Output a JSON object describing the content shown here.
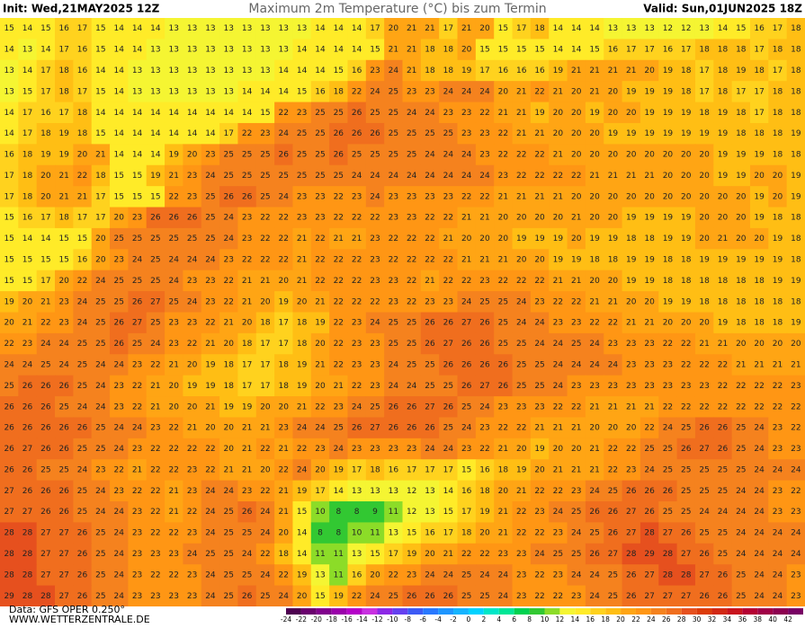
{
  "header": {
    "init": "Init: Wed,21MAY2025 12Z",
    "title": "Maximum 2m Temperature (°C) bis zum Termin",
    "valid": "Valid: Sun,01JUN2025 18Z"
  },
  "footer": {
    "source": "Data: GFS OPER 0.250°",
    "site": "WWW.WETTERZENTRALE.DE"
  },
  "colorbar": {
    "ticks": [
      -24,
      -22,
      -20,
      -18,
      -16,
      -14,
      -12,
      -10,
      -8,
      -6,
      -4,
      -2,
      0,
      2,
      4,
      6,
      8,
      10,
      12,
      14,
      16,
      18,
      20,
      22,
      24,
      26,
      28,
      30,
      32,
      34,
      36,
      38,
      40,
      42
    ],
    "colors": [
      "#4d0050",
      "#6a006e",
      "#80008c",
      "#9a00aa",
      "#b400c8",
      "#c830e0",
      "#8c28e6",
      "#6440f0",
      "#3c5af5",
      "#2878ff",
      "#1e96ff",
      "#14b4ff",
      "#00d2ff",
      "#00e6c8",
      "#00e696",
      "#00d250",
      "#32c832",
      "#8cdc28",
      "#f5f532",
      "#ffeb28",
      "#ffd21e",
      "#ffbe14",
      "#ffa514",
      "#ff9614",
      "#f5821e",
      "#f06e1e",
      "#e6501e",
      "#dc3c0a",
      "#d22814",
      "#c8141e",
      "#b40032",
      "#a00046",
      "#8c0050",
      "#780064"
    ]
  },
  "map": {
    "rows": [
      [
        15,
        14,
        15,
        16,
        17,
        15,
        14,
        14,
        14,
        13,
        13,
        13,
        13,
        13,
        13,
        13,
        13,
        14,
        14,
        14,
        17,
        20,
        21,
        21,
        17,
        21,
        20,
        15,
        17,
        18,
        14,
        14,
        14,
        13,
        13,
        13,
        12,
        12,
        13,
        14,
        15,
        16,
        17,
        18
      ],
      [
        14,
        13,
        14,
        17,
        16,
        15,
        14,
        14,
        13,
        13,
        13,
        13,
        13,
        13,
        13,
        13,
        14,
        14,
        14,
        14,
        15,
        21,
        21,
        18,
        18,
        20,
        15,
        15,
        15,
        15,
        14,
        14,
        15,
        16,
        17,
        17,
        16,
        17,
        18,
        18,
        18,
        17,
        18,
        18
      ],
      [
        13,
        14,
        17,
        18,
        16,
        14,
        14,
        13,
        13,
        13,
        13,
        13,
        13,
        13,
        13,
        14,
        14,
        14,
        15,
        16,
        23,
        24,
        21,
        18,
        18,
        19,
        17,
        16,
        16,
        16,
        19,
        21,
        21,
        21,
        21,
        20,
        19,
        18,
        17,
        18,
        19,
        18,
        17,
        18
      ],
      [
        13,
        15,
        17,
        18,
        17,
        15,
        14,
        13,
        13,
        13,
        13,
        13,
        13,
        14,
        14,
        14,
        15,
        16,
        18,
        22,
        24,
        25,
        23,
        23,
        24,
        24,
        24,
        20,
        21,
        22,
        21,
        20,
        21,
        20,
        19,
        19,
        19,
        18,
        17,
        18,
        17,
        17,
        18,
        18
      ],
      [
        14,
        17,
        16,
        17,
        18,
        14,
        14,
        14,
        14,
        14,
        14,
        14,
        14,
        14,
        15,
        22,
        23,
        25,
        25,
        26,
        25,
        25,
        24,
        24,
        23,
        23,
        22,
        21,
        21,
        19,
        20,
        20,
        19,
        20,
        20,
        19,
        19,
        19,
        18,
        19,
        18,
        17,
        18,
        18
      ],
      [
        14,
        17,
        18,
        19,
        18,
        15,
        14,
        14,
        14,
        14,
        14,
        14,
        17,
        22,
        23,
        24,
        25,
        25,
        26,
        26,
        26,
        25,
        25,
        25,
        25,
        23,
        23,
        22,
        21,
        21,
        20,
        20,
        20,
        19,
        19,
        19,
        19,
        19,
        19,
        19,
        18,
        18,
        18,
        19
      ],
      [
        16,
        18,
        19,
        19,
        20,
        21,
        14,
        14,
        14,
        19,
        20,
        23,
        25,
        25,
        25,
        26,
        25,
        25,
        26,
        25,
        25,
        25,
        25,
        24,
        24,
        24,
        23,
        22,
        22,
        22,
        21,
        20,
        20,
        20,
        20,
        20,
        20,
        20,
        20,
        19,
        19,
        19,
        18,
        18
      ],
      [
        17,
        18,
        20,
        21,
        22,
        18,
        15,
        15,
        19,
        21,
        23,
        24,
        25,
        25,
        25,
        25,
        25,
        25,
        25,
        24,
        24,
        24,
        24,
        24,
        24,
        24,
        24,
        23,
        22,
        22,
        22,
        22,
        21,
        21,
        21,
        21,
        20,
        20,
        20,
        19,
        19,
        20,
        20,
        19
      ],
      [
        17,
        18,
        20,
        21,
        21,
        17,
        15,
        15,
        15,
        22,
        23,
        25,
        26,
        26,
        25,
        24,
        23,
        23,
        22,
        23,
        24,
        23,
        23,
        23,
        23,
        22,
        22,
        21,
        21,
        21,
        21,
        20,
        20,
        20,
        20,
        20,
        20,
        20,
        20,
        20,
        20,
        19,
        20,
        19
      ],
      [
        15,
        16,
        17,
        18,
        17,
        17,
        20,
        23,
        26,
        26,
        26,
        25,
        24,
        23,
        22,
        22,
        23,
        23,
        22,
        22,
        22,
        23,
        23,
        22,
        22,
        21,
        21,
        20,
        20,
        20,
        20,
        21,
        20,
        20,
        19,
        19,
        19,
        19,
        20,
        20,
        20,
        19,
        18,
        18
      ],
      [
        15,
        14,
        14,
        15,
        15,
        20,
        25,
        25,
        25,
        25,
        25,
        25,
        24,
        23,
        22,
        22,
        21,
        22,
        21,
        21,
        23,
        22,
        22,
        22,
        21,
        20,
        20,
        20,
        19,
        19,
        19,
        20,
        19,
        19,
        18,
        18,
        19,
        19,
        20,
        21,
        20,
        20,
        19,
        18
      ],
      [
        15,
        15,
        15,
        15,
        16,
        20,
        23,
        24,
        25,
        24,
        24,
        24,
        23,
        22,
        22,
        22,
        21,
        22,
        22,
        22,
        23,
        22,
        22,
        22,
        22,
        21,
        21,
        21,
        20,
        20,
        19,
        19,
        18,
        18,
        19,
        19,
        18,
        18,
        19,
        19,
        19,
        19,
        19,
        18
      ],
      [
        15,
        15,
        17,
        20,
        22,
        24,
        25,
        25,
        25,
        24,
        23,
        23,
        22,
        21,
        21,
        20,
        21,
        22,
        22,
        22,
        23,
        23,
        22,
        21,
        22,
        22,
        23,
        22,
        22,
        22,
        21,
        21,
        20,
        20,
        19,
        19,
        18,
        18,
        18,
        18,
        18,
        18,
        19,
        19
      ],
      [
        19,
        20,
        21,
        23,
        24,
        25,
        25,
        26,
        27,
        25,
        24,
        23,
        22,
        21,
        20,
        19,
        20,
        21,
        22,
        22,
        22,
        23,
        22,
        23,
        23,
        24,
        25,
        25,
        24,
        23,
        22,
        22,
        21,
        21,
        20,
        20,
        19,
        19,
        18,
        18,
        18,
        18,
        18,
        18
      ],
      [
        20,
        21,
        22,
        23,
        24,
        25,
        26,
        27,
        25,
        23,
        23,
        22,
        21,
        20,
        18,
        17,
        18,
        19,
        22,
        23,
        24,
        25,
        25,
        26,
        26,
        27,
        26,
        25,
        24,
        24,
        23,
        23,
        22,
        22,
        21,
        21,
        20,
        20,
        20,
        19,
        18,
        18,
        18,
        19
      ],
      [
        22,
        23,
        24,
        24,
        25,
        25,
        26,
        25,
        24,
        23,
        22,
        21,
        20,
        18,
        17,
        17,
        18,
        20,
        22,
        23,
        23,
        25,
        25,
        26,
        27,
        26,
        26,
        25,
        25,
        24,
        24,
        25,
        24,
        23,
        23,
        23,
        22,
        22,
        21,
        21,
        20,
        20,
        20,
        20
      ],
      [
        24,
        24,
        25,
        24,
        25,
        24,
        24,
        23,
        22,
        21,
        20,
        19,
        18,
        17,
        17,
        18,
        19,
        21,
        22,
        23,
        23,
        24,
        25,
        25,
        26,
        26,
        26,
        26,
        25,
        25,
        24,
        24,
        24,
        24,
        23,
        23,
        23,
        22,
        22,
        22,
        21,
        21,
        21,
        21
      ],
      [
        25,
        26,
        26,
        26,
        25,
        24,
        23,
        22,
        21,
        20,
        19,
        19,
        18,
        17,
        17,
        18,
        19,
        20,
        21,
        22,
        23,
        24,
        24,
        25,
        25,
        26,
        27,
        26,
        25,
        25,
        24,
        23,
        23,
        23,
        23,
        23,
        23,
        23,
        23,
        22,
        22,
        22,
        22,
        23
      ],
      [
        26,
        26,
        26,
        25,
        24,
        24,
        23,
        22,
        21,
        20,
        20,
        21,
        19,
        19,
        20,
        20,
        21,
        22,
        23,
        24,
        25,
        26,
        26,
        27,
        26,
        25,
        24,
        23,
        23,
        23,
        22,
        22,
        21,
        21,
        21,
        21,
        22,
        22,
        22,
        22,
        22,
        22,
        22,
        22
      ],
      [
        26,
        26,
        26,
        26,
        26,
        25,
        24,
        24,
        23,
        22,
        21,
        20,
        20,
        21,
        21,
        23,
        24,
        24,
        25,
        26,
        27,
        26,
        26,
        26,
        25,
        24,
        23,
        22,
        22,
        21,
        21,
        21,
        20,
        20,
        20,
        22,
        24,
        25,
        26,
        26,
        25,
        24,
        23,
        22
      ],
      [
        26,
        27,
        26,
        26,
        25,
        25,
        24,
        23,
        22,
        22,
        22,
        22,
        20,
        21,
        22,
        21,
        22,
        23,
        24,
        23,
        23,
        23,
        23,
        24,
        24,
        23,
        22,
        21,
        20,
        19,
        20,
        20,
        21,
        22,
        22,
        25,
        25,
        26,
        27,
        26,
        25,
        24,
        23,
        23
      ],
      [
        26,
        26,
        25,
        25,
        24,
        23,
        22,
        21,
        22,
        22,
        23,
        22,
        21,
        21,
        20,
        22,
        24,
        20,
        19,
        17,
        18,
        16,
        17,
        17,
        17,
        15,
        16,
        18,
        19,
        20,
        21,
        21,
        21,
        22,
        23,
        24,
        25,
        25,
        25,
        25,
        25,
        24,
        24,
        24
      ],
      [
        27,
        26,
        26,
        26,
        25,
        24,
        23,
        22,
        22,
        21,
        23,
        24,
        24,
        23,
        22,
        21,
        19,
        17,
        14,
        13,
        13,
        13,
        12,
        13,
        14,
        16,
        18,
        20,
        21,
        22,
        22,
        23,
        24,
        25,
        26,
        26,
        26,
        25,
        25,
        25,
        24,
        24,
        23,
        22
      ],
      [
        27,
        27,
        26,
        26,
        25,
        24,
        24,
        23,
        22,
        21,
        22,
        24,
        25,
        26,
        24,
        21,
        15,
        10,
        8,
        8,
        9,
        11,
        12,
        13,
        15,
        17,
        19,
        21,
        22,
        23,
        24,
        25,
        26,
        26,
        27,
        26,
        25,
        25,
        24,
        24,
        24,
        24,
        23,
        23
      ],
      [
        28,
        28,
        27,
        27,
        26,
        25,
        24,
        23,
        22,
        22,
        23,
        24,
        25,
        25,
        24,
        20,
        14,
        8,
        8,
        10,
        11,
        13,
        15,
        16,
        17,
        18,
        20,
        21,
        22,
        22,
        23,
        24,
        25,
        26,
        27,
        28,
        27,
        26,
        25,
        25,
        24,
        24,
        24,
        24
      ],
      [
        28,
        28,
        27,
        27,
        26,
        25,
        24,
        23,
        23,
        23,
        24,
        25,
        25,
        24,
        22,
        18,
        14,
        11,
        11,
        13,
        15,
        17,
        19,
        20,
        21,
        22,
        22,
        23,
        23,
        24,
        25,
        25,
        26,
        27,
        28,
        29,
        28,
        27,
        26,
        25,
        24,
        24,
        24,
        24
      ],
      [
        28,
        28,
        27,
        27,
        26,
        25,
        24,
        23,
        22,
        22,
        23,
        24,
        25,
        25,
        24,
        22,
        19,
        13,
        11,
        16,
        20,
        22,
        23,
        24,
        24,
        25,
        24,
        24,
        23,
        22,
        23,
        24,
        24,
        25,
        26,
        27,
        28,
        28,
        27,
        26,
        25,
        24,
        24,
        23
      ],
      [
        29,
        28,
        28,
        27,
        26,
        25,
        24,
        23,
        23,
        23,
        23,
        24,
        25,
        26,
        25,
        24,
        20,
        15,
        19,
        22,
        24,
        25,
        26,
        26,
        26,
        25,
        25,
        24,
        23,
        22,
        22,
        23,
        24,
        25,
        26,
        27,
        27,
        27,
        26,
        26,
        25,
        24,
        24,
        23
      ]
    ]
  }
}
